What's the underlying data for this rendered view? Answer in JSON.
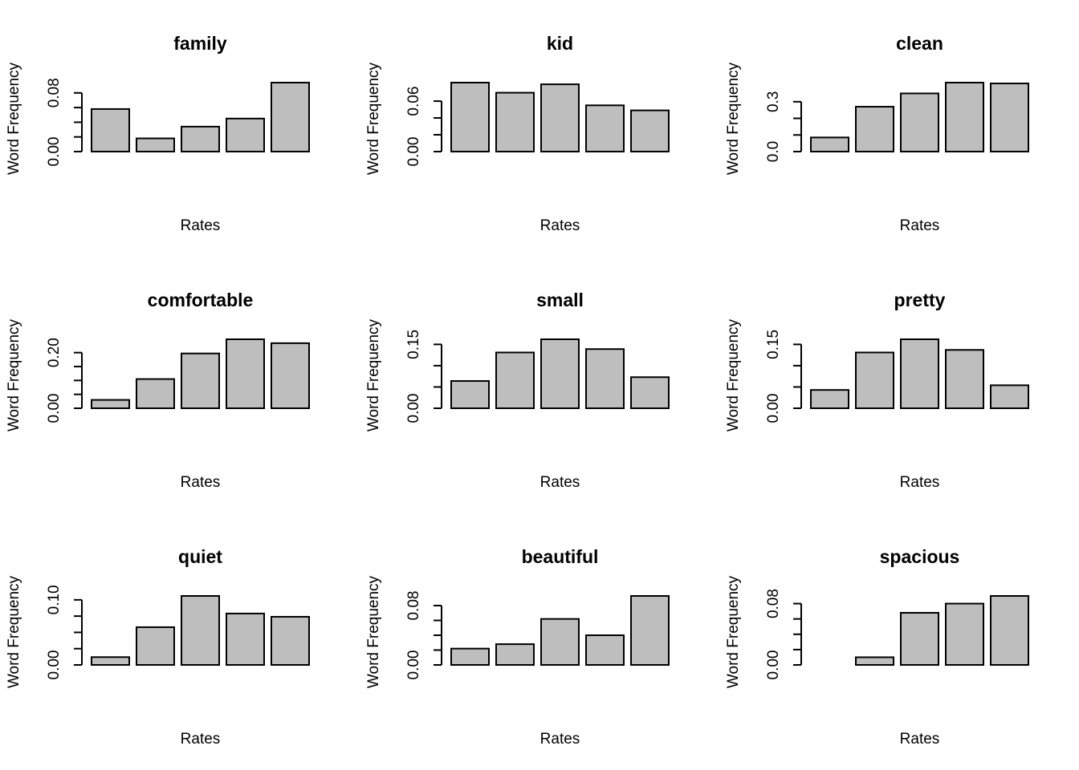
{
  "colors": {
    "background": "#ffffff",
    "bar_fill": "#bebebe",
    "bar_stroke": "#000000",
    "text": "#000000"
  },
  "chart_data": [
    {
      "type": "bar",
      "title": "family",
      "xlabel": "Rates",
      "ylabel": "Word Frequency",
      "values": [
        0.058,
        0.018,
        0.034,
        0.045,
        0.094
      ],
      "ylim": [
        0,
        0.094
      ],
      "yticks": [
        0,
        0.02,
        0.04,
        0.06,
        0.08
      ],
      "ytick_labels": [
        "0.00",
        "",
        "",
        "",
        "0.08"
      ]
    },
    {
      "type": "bar",
      "title": "kid",
      "xlabel": "Rates",
      "ylabel": "Word Frequency",
      "values": [
        0.082,
        0.07,
        0.08,
        0.055,
        0.049
      ],
      "ylim": [
        0,
        0.082
      ],
      "yticks": [
        0,
        0.02,
        0.04,
        0.06
      ],
      "ytick_labels": [
        "0.00",
        "",
        "",
        "0.06"
      ]
    },
    {
      "type": "bar",
      "title": "clean",
      "xlabel": "Rates",
      "ylabel": "Word Frequency",
      "values": [
        0.085,
        0.27,
        0.35,
        0.415,
        0.41
      ],
      "ylim": [
        0,
        0.415
      ],
      "yticks": [
        0,
        0.1,
        0.2,
        0.3
      ],
      "ytick_labels": [
        "0.0",
        "",
        "",
        "0.3"
      ]
    },
    {
      "type": "bar",
      "title": "comfortable",
      "xlabel": "Rates",
      "ylabel": "Word Frequency",
      "values": [
        0.03,
        0.105,
        0.197,
        0.248,
        0.234
      ],
      "ylim": [
        0,
        0.248
      ],
      "yticks": [
        0,
        0.05,
        0.1,
        0.15,
        0.2
      ],
      "ytick_labels": [
        "0.00",
        "",
        "",
        "",
        "0.20"
      ]
    },
    {
      "type": "bar",
      "title": "small",
      "xlabel": "Rates",
      "ylabel": "Word Frequency",
      "values": [
        0.064,
        0.131,
        0.162,
        0.139,
        0.073
      ],
      "ylim": [
        0,
        0.162
      ],
      "yticks": [
        0,
        0.05,
        0.1,
        0.15
      ],
      "ytick_labels": [
        "0.00",
        "",
        "",
        "0.15"
      ]
    },
    {
      "type": "bar",
      "title": "pretty",
      "xlabel": "Rates",
      "ylabel": "Word Frequency",
      "values": [
        0.043,
        0.131,
        0.162,
        0.137,
        0.054
      ],
      "ylim": [
        0,
        0.162
      ],
      "yticks": [
        0,
        0.05,
        0.1,
        0.15
      ],
      "ytick_labels": [
        "0.00",
        "",
        "",
        "0.15"
      ]
    },
    {
      "type": "bar",
      "title": "quiet",
      "xlabel": "Rates",
      "ylabel": "Word Frequency",
      "values": [
        0.012,
        0.058,
        0.106,
        0.079,
        0.074
      ],
      "ylim": [
        0,
        0.106
      ],
      "yticks": [
        0,
        0.025,
        0.05,
        0.075,
        0.1
      ],
      "ytick_labels": [
        "0.00",
        "",
        "",
        "",
        "0.10"
      ]
    },
    {
      "type": "bar",
      "title": "beautiful",
      "xlabel": "Rates",
      "ylabel": "Word Frequency",
      "values": [
        0.022,
        0.028,
        0.062,
        0.04,
        0.093
      ],
      "ylim": [
        0,
        0.093
      ],
      "yticks": [
        0,
        0.02,
        0.04,
        0.06,
        0.08
      ],
      "ytick_labels": [
        "0.00",
        "",
        "",
        "",
        "0.08"
      ]
    },
    {
      "type": "bar",
      "title": "spacious",
      "xlabel": "Rates",
      "ylabel": "Word Frequency",
      "values": [
        0.0,
        0.01,
        0.068,
        0.08,
        0.09
      ],
      "ylim": [
        0,
        0.09
      ],
      "yticks": [
        0,
        0.02,
        0.04,
        0.06,
        0.08
      ],
      "ytick_labels": [
        "0.00",
        "",
        "",
        "",
        "0.08"
      ]
    }
  ]
}
